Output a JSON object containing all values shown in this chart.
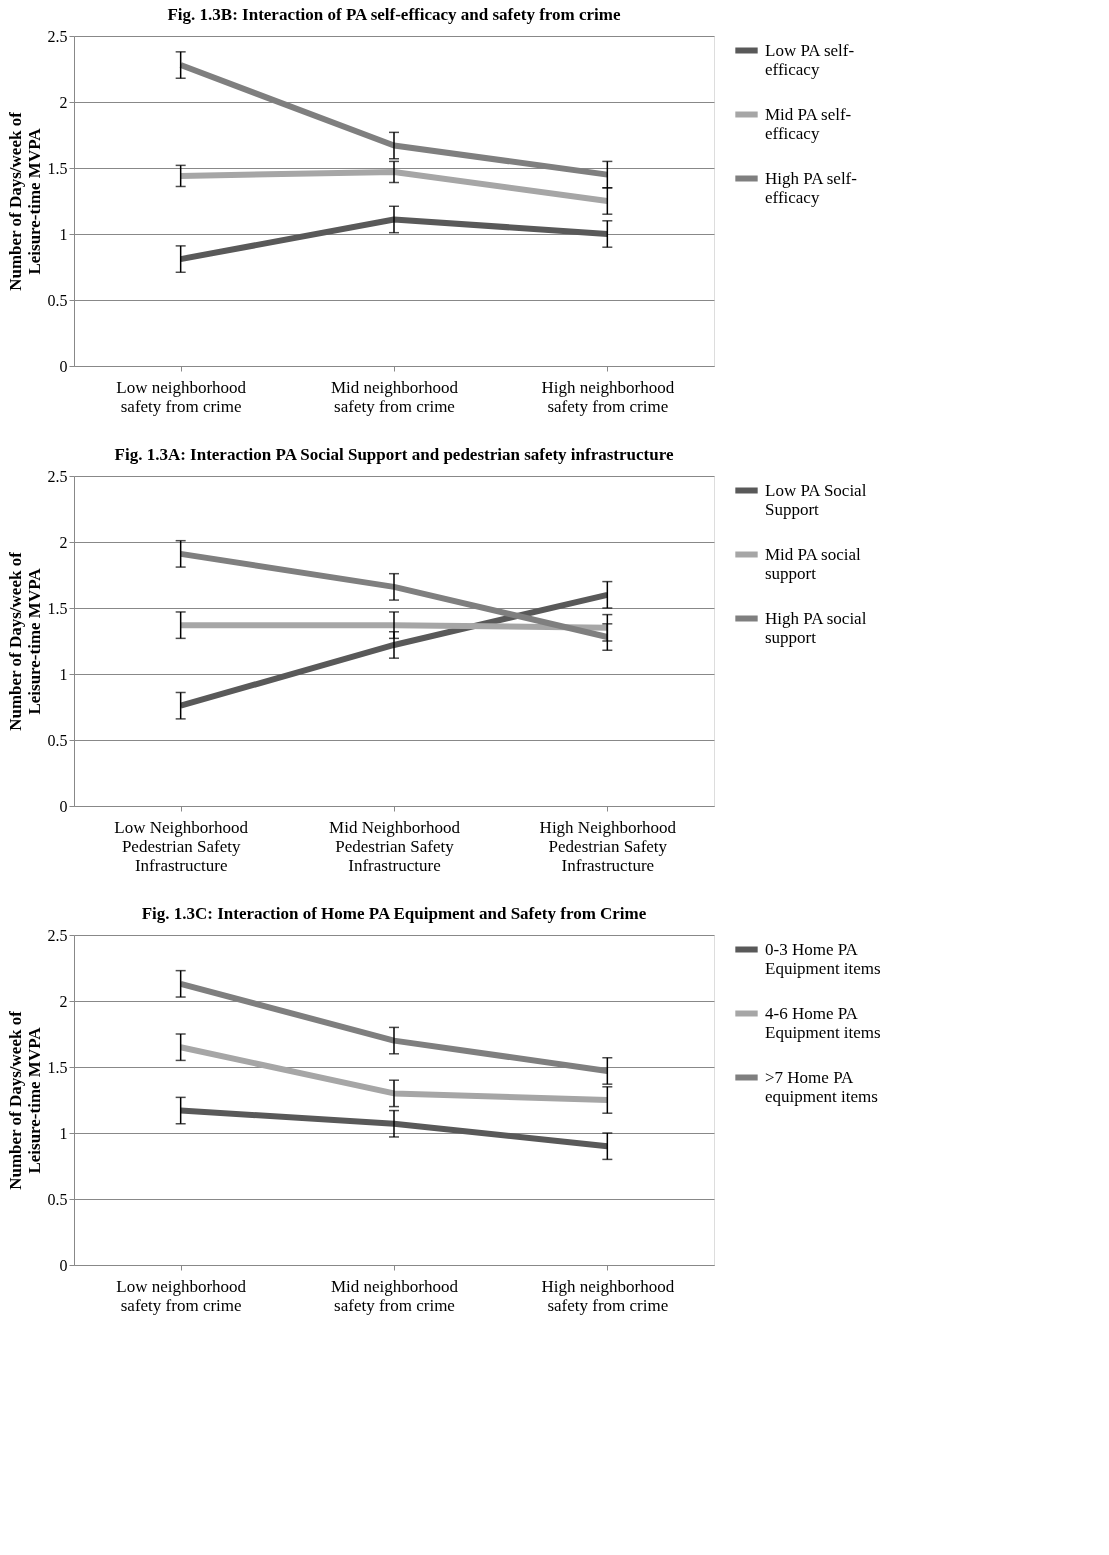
{
  "chart_data": [
    {
      "type": "line",
      "title": "Fig. 1.3B: Interaction of PA self-efficacy and safety from crime",
      "ylabel": "Number of Days/week of Leisure-time MVPA",
      "categories": [
        "Low neighborhood safety from crime",
        "Mid neighborhood safety from crime",
        "High neighborhood safety from crime"
      ],
      "ylim": [
        0,
        2.5
      ],
      "yticks": [
        0,
        0.5,
        1,
        1.5,
        2,
        2.5
      ],
      "grid": "y",
      "legend": "right",
      "marker": "none",
      "series": [
        {
          "name": "Low PA self-efficacy",
          "color": "#595959",
          "values": [
            0.81,
            1.11,
            1.0
          ],
          "errors": [
            0.1,
            0.1,
            0.1
          ]
        },
        {
          "name": "Mid PA self-efficacy",
          "color": "#a6a6a6",
          "values": [
            1.44,
            1.47,
            1.25
          ],
          "errors": [
            0.08,
            0.08,
            0.1
          ]
        },
        {
          "name": "High PA self-efficacy",
          "color": "#7f7f7f",
          "values": [
            2.28,
            1.67,
            1.45
          ],
          "errors": [
            0.1,
            0.1,
            0.1
          ]
        }
      ]
    },
    {
      "type": "line",
      "title": "Fig. 1.3A: Interaction PA Social Support and pedestrian safety infrastructure",
      "ylabel": "Number of Days/week of Leisure-time MVPA",
      "categories": [
        "Low Neighborhood Pedestrian Safety Infrastructure",
        "Mid Neighborhood Pedestrian Safety Infrastructure",
        "High Neighborhood Pedestrian Safety Infrastructure"
      ],
      "ylim": [
        0,
        2.5
      ],
      "yticks": [
        0,
        0.5,
        1,
        1.5,
        2,
        2.5
      ],
      "grid": "y",
      "legend": "right",
      "marker": "none",
      "series": [
        {
          "name": "Low PA Social Support",
          "color": "#595959",
          "values": [
            0.76,
            1.22,
            1.6
          ],
          "errors": [
            0.1,
            0.1,
            0.1
          ]
        },
        {
          "name": "Mid PA social support",
          "color": "#a6a6a6",
          "values": [
            1.37,
            1.37,
            1.35
          ],
          "errors": [
            0.1,
            0.1,
            0.1
          ]
        },
        {
          "name": "High PA social support",
          "color": "#7f7f7f",
          "values": [
            1.91,
            1.66,
            1.28
          ],
          "errors": [
            0.1,
            0.1,
            0.1
          ]
        }
      ]
    },
    {
      "type": "line",
      "title": "Fig. 1.3C: Interaction of Home PA Equipment and Safety from Crime",
      "ylabel": "Number of Days/week of Leisure-time MVPA",
      "categories": [
        "Low neighborhood safety from crime",
        "Mid neighborhood safety from crime",
        "High neighborhood safety from crime"
      ],
      "ylim": [
        0,
        2.5
      ],
      "yticks": [
        0,
        0.5,
        1,
        1.5,
        2,
        2.5
      ],
      "grid": "y",
      "legend": "right",
      "marker": "none",
      "series": [
        {
          "name": "0-3 Home PA Equipment items",
          "color": "#595959",
          "values": [
            1.17,
            1.07,
            0.9
          ],
          "errors": [
            0.1,
            0.1,
            0.1
          ]
        },
        {
          "name": "4-6 Home PA Equipment items",
          "color": "#a6a6a6",
          "values": [
            1.65,
            1.3,
            1.25
          ],
          "errors": [
            0.1,
            0.1,
            0.1
          ]
        },
        {
          "name": ">7 Home PA equipment items",
          "color": "#7f7f7f",
          "values": [
            2.13,
            1.7,
            1.47
          ],
          "errors": [
            0.1,
            0.1,
            0.1
          ]
        }
      ]
    }
  ]
}
